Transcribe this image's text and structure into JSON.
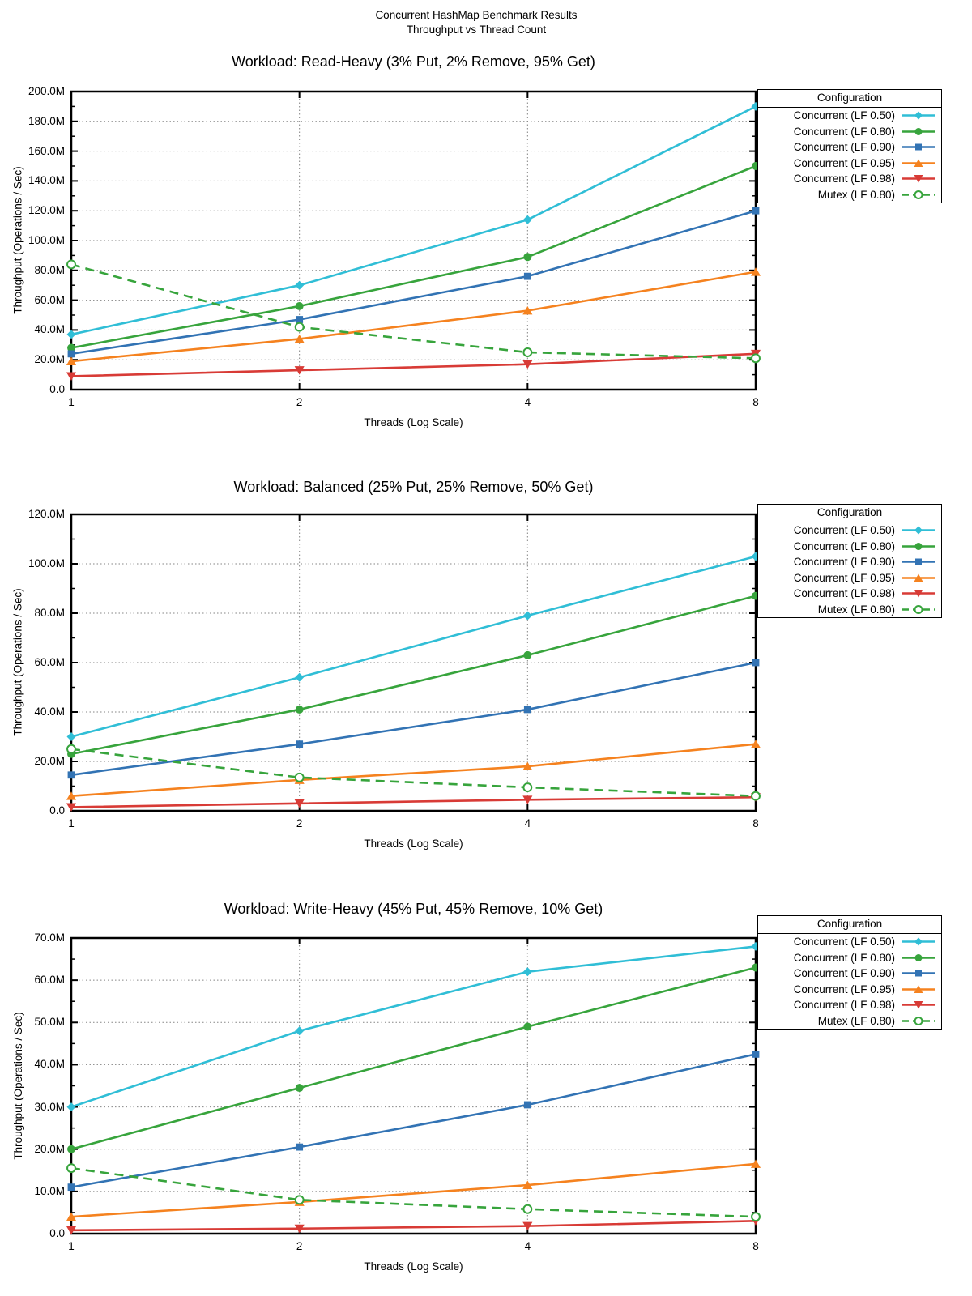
{
  "header": {
    "title_line1": "Concurrent HashMap Benchmark Results",
    "title_line2": "Throughput vs Thread Count"
  },
  "legend": {
    "title": "Configuration",
    "position": "outside-right-top"
  },
  "series_meta": [
    {
      "name": "Concurrent (LF 0.50)",
      "color": "#30bed6",
      "marker": "diamond",
      "dashed": false
    },
    {
      "name": "Concurrent (LF 0.80)",
      "color": "#37a43c",
      "marker": "circle",
      "dashed": false
    },
    {
      "name": "Concurrent (LF 0.90)",
      "color": "#3273b4",
      "marker": "square",
      "dashed": false
    },
    {
      "name": "Concurrent (LF 0.95)",
      "color": "#f5821f",
      "marker": "triangle-up",
      "dashed": false
    },
    {
      "name": "Concurrent (LF 0.98)",
      "color": "#d83b36",
      "marker": "triangle-down",
      "dashed": false
    },
    {
      "name": "Mutex (LF 0.80)",
      "color": "#37a43c",
      "marker": "circle-open",
      "dashed": true
    }
  ],
  "chart_data": [
    {
      "type": "line",
      "title": "Workload: Read-Heavy (3% Put, 2% Remove, 95% Get)",
      "xlabel": "Threads (Log Scale)",
      "ylabel": "Throughput (Operations / Sec)",
      "x_scale": "log2",
      "x": [
        1,
        2,
        4,
        8
      ],
      "x_tick_labels": [
        "1",
        "2",
        "4",
        "8"
      ],
      "ylim": [
        0,
        200000000
      ],
      "ytick_step": 20000000,
      "grid": true,
      "series": [
        {
          "name": "Concurrent (LF 0.50)",
          "values": [
            37000000,
            70000000,
            114000000,
            190000000
          ]
        },
        {
          "name": "Concurrent (LF 0.80)",
          "values": [
            28000000,
            56000000,
            89000000,
            150000000
          ]
        },
        {
          "name": "Concurrent (LF 0.90)",
          "values": [
            24000000,
            47000000,
            76000000,
            120000000
          ]
        },
        {
          "name": "Concurrent (LF 0.95)",
          "values": [
            19000000,
            34000000,
            53000000,
            79000000
          ]
        },
        {
          "name": "Concurrent (LF 0.98)",
          "values": [
            9000000,
            13000000,
            17000000,
            24000000
          ]
        },
        {
          "name": "Mutex (LF 0.80)",
          "values": [
            84000000,
            42000000,
            25000000,
            21000000
          ]
        }
      ]
    },
    {
      "type": "line",
      "title": "Workload: Balanced (25% Put, 25% Remove, 50% Get)",
      "xlabel": "Threads (Log Scale)",
      "ylabel": "Throughput (Operations / Sec)",
      "x_scale": "log2",
      "x": [
        1,
        2,
        4,
        8
      ],
      "x_tick_labels": [
        "1",
        "2",
        "4",
        "8"
      ],
      "ylim": [
        0,
        120000000
      ],
      "ytick_step": 20000000,
      "grid": true,
      "series": [
        {
          "name": "Concurrent (LF 0.50)",
          "values": [
            30000000,
            54000000,
            79000000,
            103000000
          ]
        },
        {
          "name": "Concurrent (LF 0.80)",
          "values": [
            23000000,
            41000000,
            63000000,
            87000000
          ]
        },
        {
          "name": "Concurrent (LF 0.90)",
          "values": [
            14500000,
            27000000,
            41000000,
            60000000
          ]
        },
        {
          "name": "Concurrent (LF 0.95)",
          "values": [
            6000000,
            12500000,
            18000000,
            27000000
          ]
        },
        {
          "name": "Concurrent (LF 0.98)",
          "values": [
            1500000,
            3000000,
            4500000,
            5500000
          ]
        },
        {
          "name": "Mutex (LF 0.80)",
          "values": [
            25000000,
            13500000,
            9500000,
            6000000
          ]
        }
      ]
    },
    {
      "type": "line",
      "title": "Workload: Write-Heavy (45% Put, 45% Remove, 10% Get)",
      "xlabel": "Threads (Log Scale)",
      "ylabel": "Throughput (Operations / Sec)",
      "x_scale": "log2",
      "x": [
        1,
        2,
        4,
        8
      ],
      "x_tick_labels": [
        "1",
        "2",
        "4",
        "8"
      ],
      "ylim": [
        0,
        70000000
      ],
      "ytick_step": 10000000,
      "grid": true,
      "series": [
        {
          "name": "Concurrent (LF 0.50)",
          "values": [
            30000000,
            48000000,
            62000000,
            68000000
          ]
        },
        {
          "name": "Concurrent (LF 0.80)",
          "values": [
            20000000,
            34500000,
            49000000,
            63000000
          ]
        },
        {
          "name": "Concurrent (LF 0.90)",
          "values": [
            11000000,
            20500000,
            30500000,
            42500000
          ]
        },
        {
          "name": "Concurrent (LF 0.95)",
          "values": [
            4000000,
            7500000,
            11500000,
            16500000
          ]
        },
        {
          "name": "Concurrent (LF 0.98)",
          "values": [
            800000,
            1200000,
            1800000,
            3000000
          ]
        },
        {
          "name": "Mutex (LF 0.80)",
          "values": [
            15500000,
            8000000,
            5800000,
            4000000
          ]
        }
      ]
    }
  ]
}
